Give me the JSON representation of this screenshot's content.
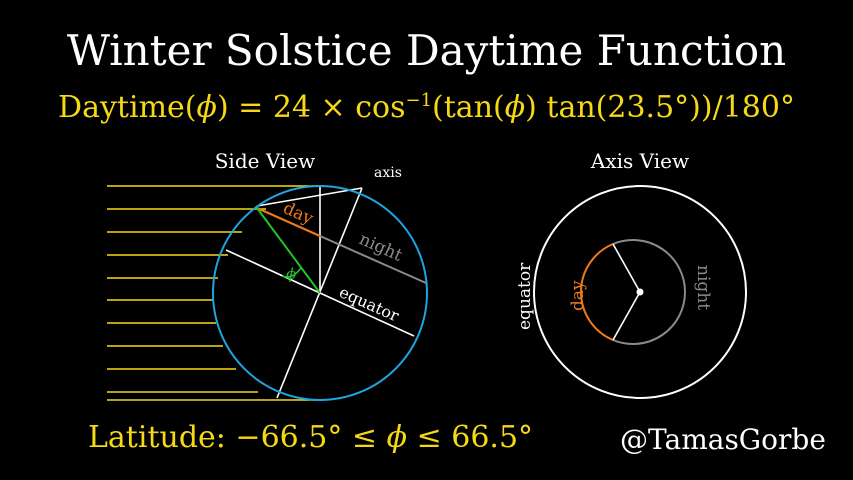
{
  "title": "Winter Solstice Daytime Function",
  "formula": {
    "lhs": "Daytime(",
    "phi": "ϕ",
    "mid": ") = 24 × cos",
    "exp": "−1",
    "rhs_a": "(tan(",
    "rhs_b": ") tan(23.5°))/180°"
  },
  "latitude": {
    "prefix": "Latitude:  −66.5° ≤ ",
    "phi": "ϕ",
    "suffix": " ≤ 66.5°"
  },
  "credit": "@TamasGorbe",
  "side_view": {
    "heading": "Side View",
    "axis_label": "axis",
    "day_label": "day",
    "night_label": "night",
    "phi_label": "ϕ",
    "equator_label": "equator",
    "axial_tilt_deg": 23.5
  },
  "axis_view": {
    "heading": "Axis View",
    "day_label": "day",
    "night_label": "night",
    "equator_label": "equator"
  },
  "colors": {
    "background": "#000000",
    "sunlight": "#f5d915",
    "globe": "#1ea5e0",
    "day": "#f07a1a",
    "night": "#8a8a8a",
    "latitude_angle": "#22c22a",
    "text": "#ffffff"
  }
}
